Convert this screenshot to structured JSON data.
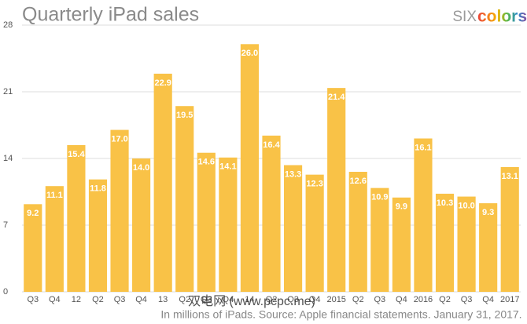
{
  "chart_data": {
    "type": "bar",
    "title": "Quarterly iPad sales",
    "logo": {
      "prefix": "SIX",
      "suffix": "colors"
    },
    "categories": [
      "Q3",
      "Q4",
      "12",
      "Q2",
      "Q3",
      "Q4",
      "13",
      "Q2",
      "Q3",
      "Q4",
      "14",
      "Q2",
      "Q3",
      "Q4",
      "2015",
      "Q2",
      "Q3",
      "Q4",
      "2016",
      "Q2",
      "Q3",
      "Q4",
      "2017"
    ],
    "values": [
      9.2,
      11.1,
      15.4,
      11.8,
      17.0,
      14.0,
      22.9,
      19.5,
      14.6,
      14.1,
      26.0,
      16.4,
      13.3,
      12.3,
      21.4,
      12.6,
      10.9,
      9.9,
      16.1,
      10.3,
      10.0,
      9.3,
      13.1
    ],
    "value_labels": [
      "9.2",
      "11.1",
      "15.4",
      "11.8",
      "17.0",
      "14.0",
      "22.9",
      "19.5",
      "14.6",
      "14.1",
      "26.0",
      "16.4",
      "13.3",
      "12.3",
      "21.4",
      "12.6",
      "10.9",
      "9.9",
      "16.1",
      "10.3",
      "10.0",
      "9.3",
      "13.1"
    ],
    "color": "#f9c247",
    "ylim": [
      0,
      28
    ],
    "yticks": [
      0,
      7,
      14,
      21,
      28
    ],
    "grid": true,
    "footnote": "In millions of iPads. Source: Apple financial statements. January 31, 2017.",
    "watermark": "双电网 (www.pcpc.me)"
  }
}
